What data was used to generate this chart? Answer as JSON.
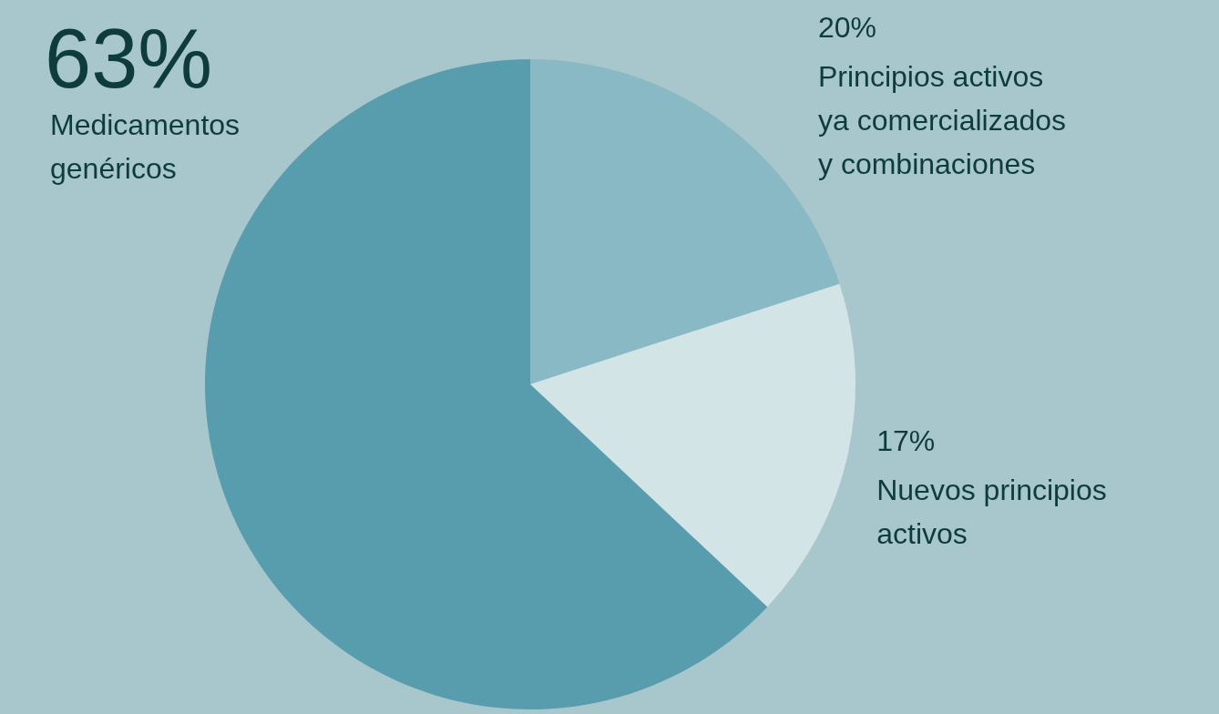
{
  "chart_data": {
    "type": "pie",
    "categories": [
      "Principios activos\nya comercializados\ny combinaciones",
      "Nuevos principios\nactivos",
      "Medicamentos\ngenéricos"
    ],
    "values": [
      20,
      17,
      63
    ],
    "value_labels": [
      "20%",
      "17%",
      "63%"
    ],
    "colors": [
      "#8ab9c6",
      "#d3e4e7",
      "#589dae"
    ],
    "legend": false
  }
}
